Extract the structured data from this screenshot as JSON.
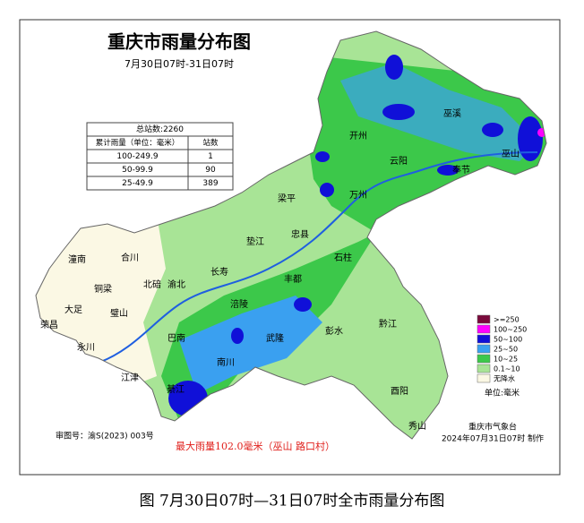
{
  "title": "重庆市雨量分布图",
  "subtitle": "7月30日07时-31日07时",
  "stats_table": {
    "total": "总站数:2260",
    "header": [
      "累计雨量（单位：毫米）",
      "站数"
    ],
    "rows": [
      [
        "100-249.9",
        "1"
      ],
      [
        "50-99.9",
        "90"
      ],
      [
        "25-49.9",
        "389"
      ]
    ]
  },
  "legend": {
    "items": [
      {
        "label": ">=250",
        "color": "#7a0a3c"
      },
      {
        "label": "100~250",
        "color": "#ff00ff"
      },
      {
        "label": "50~100",
        "color": "#1010d8"
      },
      {
        "label": "25~50",
        "color": "#3aa0f0"
      },
      {
        "label": "10~25",
        "color": "#3cc84a"
      },
      {
        "label": "0.1~10",
        "color": "#a8e496"
      },
      {
        "label": "无降水",
        "color": "#fbf8e4"
      }
    ],
    "unit": "单位:毫米"
  },
  "districts": [
    "巫溪",
    "巫山",
    "奉节",
    "云阳",
    "开州",
    "万州",
    "梁平",
    "垫江",
    "忠县",
    "石柱",
    "丰都",
    "长寿",
    "涪陵",
    "武隆",
    "彭水",
    "黔江",
    "酉阳",
    "秀山",
    "南川",
    "巴南",
    "綦江",
    "江津",
    "永川",
    "荣昌",
    "大足",
    "铜梁",
    "潼南",
    "合川",
    "璧山",
    "北碚",
    "渝北"
  ],
  "map_approval": "审图号：渝S(2023) 003号",
  "max_rain": "最大雨量102.0毫米（巫山 路口村）",
  "producer": "重庆市气象台",
  "produced_time": "2024年07月31日07时 制作",
  "caption": "图  7月30日07时—31日07时全市雨量分布图"
}
